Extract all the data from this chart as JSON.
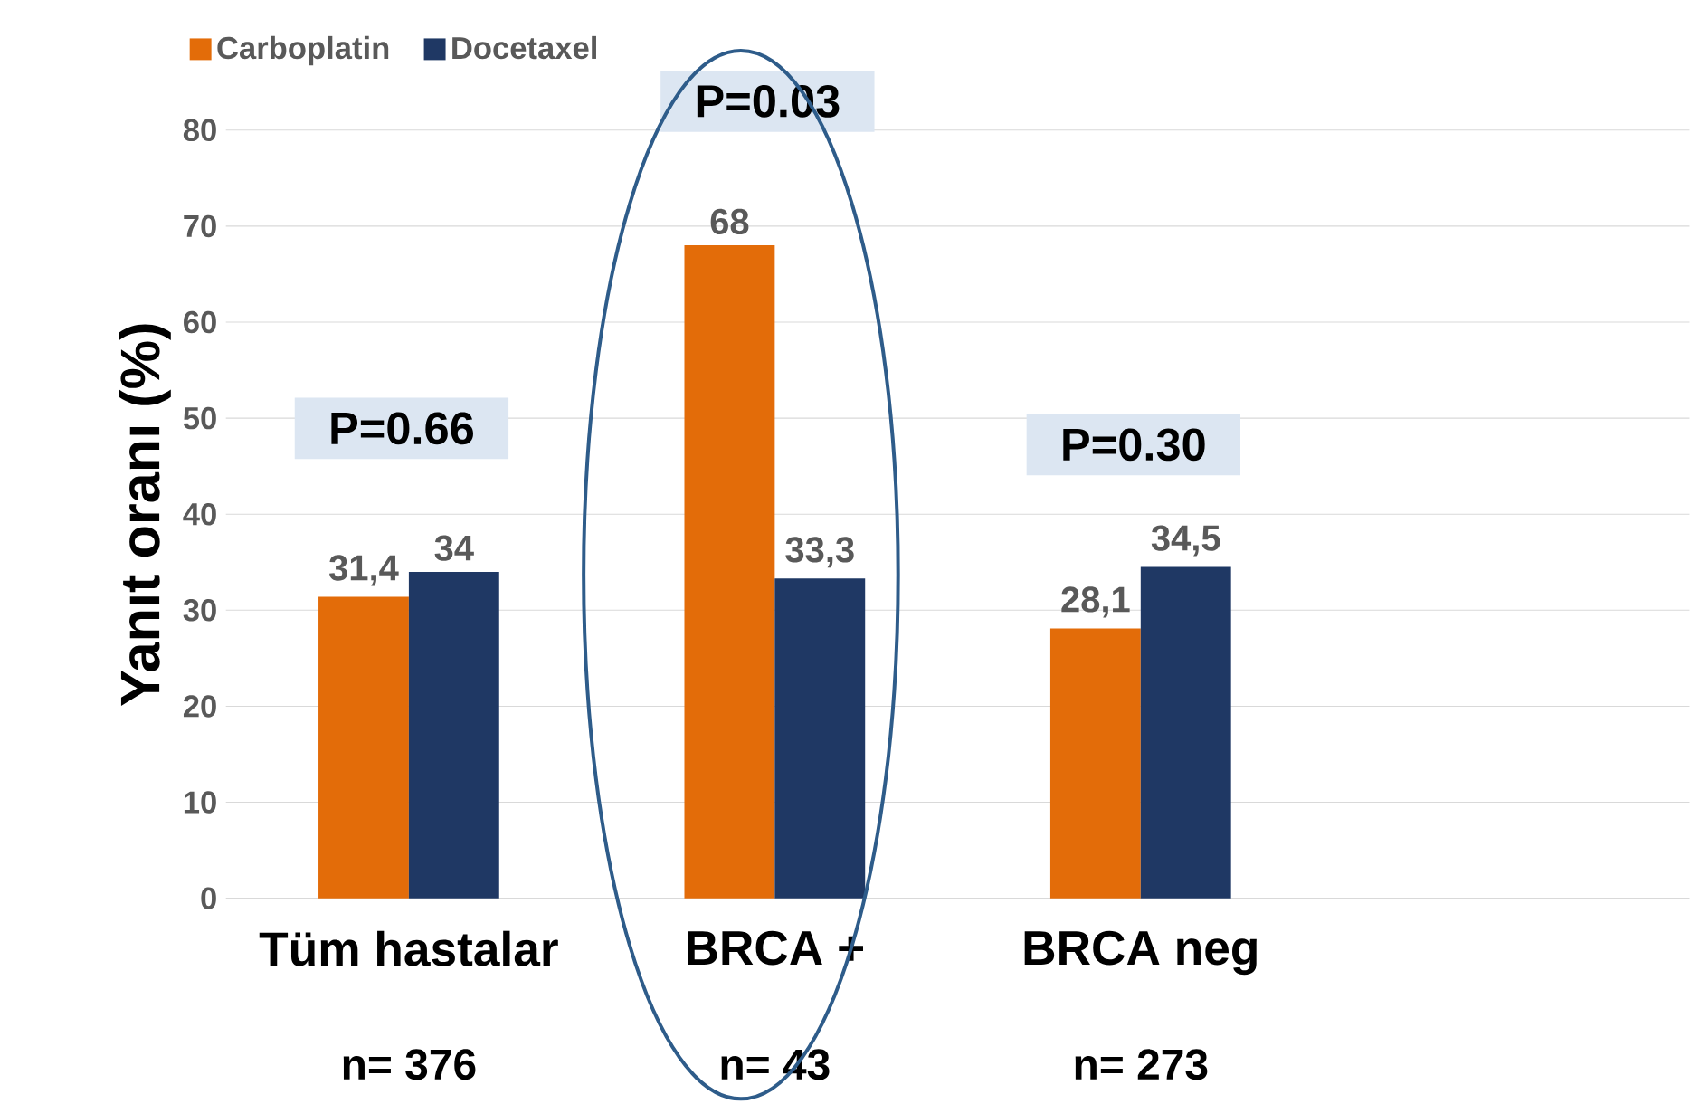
{
  "chart_data": {
    "type": "bar",
    "ylabel": "Yanıt oranı (%)",
    "categories": [
      "Tüm hastalar",
      "BRCA +",
      "BRCA neg"
    ],
    "series": [
      {
        "name": "Carboplatin",
        "color": "#e36c09",
        "values": [
          31.4,
          68,
          28.1
        ],
        "value_labels": [
          "31,4",
          "68",
          "28,1"
        ]
      },
      {
        "name": "Docetaxel",
        "color": "#1f3864",
        "values": [
          34,
          33.3,
          34.5
        ],
        "value_labels": [
          "34",
          "33,3",
          "34,5"
        ]
      }
    ],
    "ylim": [
      0,
      80
    ],
    "yticks": [
      0,
      10,
      20,
      30,
      40,
      50,
      60,
      70,
      80
    ],
    "grid": "y",
    "legend": "top left",
    "annotations": [
      "P=0.66",
      "P=0.03",
      "P=0.30",
      "n= 376",
      "n= 43",
      "n= 273"
    ]
  }
}
